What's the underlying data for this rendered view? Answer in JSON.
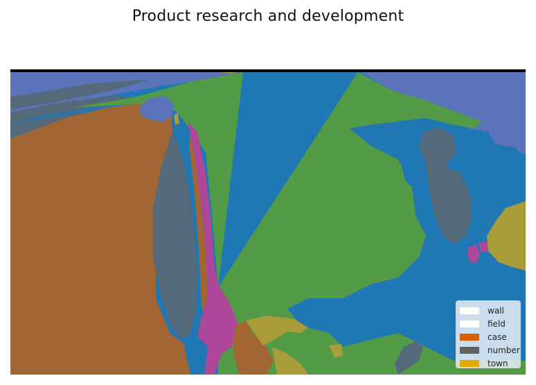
{
  "title": "Product research and development",
  "colors": {
    "ocean": "#1f77b4",
    "green": "#539b47",
    "brown": "#a26634",
    "slate": "#546a7b",
    "periwinkle": "#5b73b8",
    "magenta": "#ad4799",
    "olive": "#a99d39",
    "frame": "#000000"
  },
  "legend": {
    "items": [
      {
        "label": "wall",
        "color": "#ffffff"
      },
      {
        "label": "field",
        "color": "#ffffff"
      },
      {
        "label": "case",
        "color": "#d95f02"
      },
      {
        "label": "number",
        "color": "#616161"
      },
      {
        "label": "town",
        "color": "#e6ab02"
      }
    ]
  }
}
